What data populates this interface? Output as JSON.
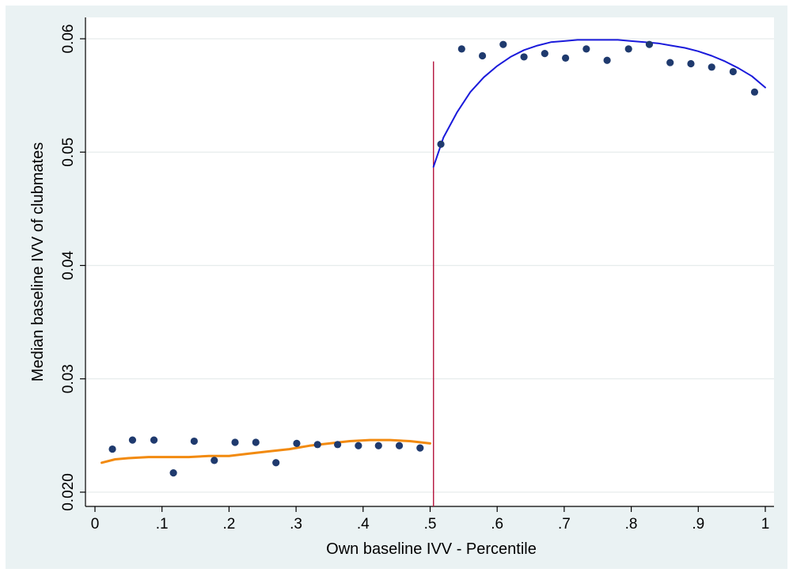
{
  "chart_data": {
    "type": "scatter",
    "title": "",
    "xlabel": "Own baseline IVV - Percentile",
    "ylabel": "Median baseline IVV of clubmates",
    "xlim": [
      0,
      1
    ],
    "ylim": [
      0.0195,
      0.0605
    ],
    "x_ticks": [
      {
        "value": 0,
        "label": "0"
      },
      {
        "value": 0.1,
        "label": ".1"
      },
      {
        "value": 0.2,
        "label": ".2"
      },
      {
        "value": 0.3,
        "label": ".3"
      },
      {
        "value": 0.4,
        "label": ".4"
      },
      {
        "value": 0.5,
        "label": ".5"
      },
      {
        "value": 0.6,
        "label": ".6"
      },
      {
        "value": 0.7,
        "label": ".7"
      },
      {
        "value": 0.8,
        "label": ".8"
      },
      {
        "value": 0.9,
        "label": ".9"
      },
      {
        "value": 1,
        "label": "1"
      }
    ],
    "y_ticks": [
      {
        "value": 0.02,
        "label": "0.020"
      },
      {
        "value": 0.03,
        "label": "0.03"
      },
      {
        "value": 0.04,
        "label": "0.04"
      },
      {
        "value": 0.05,
        "label": "0.05"
      },
      {
        "value": 0.06,
        "label": "0.06"
      }
    ],
    "grid": "horizontal",
    "cutoff": {
      "x": 0.505,
      "y_range": [
        0.0195,
        0.058
      ],
      "color": "#b5123c"
    },
    "scatter_points": {
      "color": "#1f3a6e",
      "x": [
        0.026,
        0.056,
        0.088,
        0.117,
        0.148,
        0.178,
        0.209,
        0.24,
        0.27,
        0.301,
        0.332,
        0.362,
        0.393,
        0.423,
        0.454,
        0.485,
        0.516,
        0.547,
        0.578,
        0.609,
        0.64,
        0.671,
        0.702,
        0.733,
        0.764,
        0.796,
        0.827,
        0.858,
        0.889,
        0.92,
        0.952,
        0.984
      ],
      "y": [
        0.0238,
        0.0246,
        0.0246,
        0.0217,
        0.0245,
        0.0228,
        0.0244,
        0.0244,
        0.0226,
        0.0243,
        0.0242,
        0.0242,
        0.0241,
        0.0241,
        0.0241,
        0.0239,
        0.0507,
        0.0591,
        0.0585,
        0.0595,
        0.0584,
        0.0587,
        0.0583,
        0.0591,
        0.0581,
        0.0591,
        0.0595,
        0.0579,
        0.0578,
        0.0575,
        0.0571,
        0.0553
      ]
    },
    "fits": [
      {
        "side": "left",
        "color": "#f28a0f",
        "x": [
          0.01,
          0.03,
          0.05,
          0.08,
          0.11,
          0.14,
          0.17,
          0.2,
          0.23,
          0.26,
          0.29,
          0.32,
          0.35,
          0.38,
          0.41,
          0.44,
          0.47,
          0.5
        ],
        "y": [
          0.0226,
          0.0229,
          0.023,
          0.0231,
          0.0231,
          0.0231,
          0.0232,
          0.0232,
          0.0234,
          0.0236,
          0.0238,
          0.0241,
          0.0243,
          0.0245,
          0.0246,
          0.0246,
          0.0245,
          0.0243
        ]
      },
      {
        "side": "right",
        "color": "#1a1adb",
        "x": [
          0.505,
          0.52,
          0.54,
          0.56,
          0.58,
          0.6,
          0.62,
          0.64,
          0.66,
          0.68,
          0.7,
          0.72,
          0.74,
          0.76,
          0.78,
          0.8,
          0.82,
          0.84,
          0.86,
          0.88,
          0.9,
          0.92,
          0.94,
          0.96,
          0.98,
          1.0
        ],
        "y": [
          0.0487,
          0.0513,
          0.0535,
          0.0553,
          0.0566,
          0.0576,
          0.0584,
          0.059,
          0.0594,
          0.0597,
          0.0598,
          0.0599,
          0.0599,
          0.0599,
          0.0599,
          0.0598,
          0.0597,
          0.0596,
          0.0594,
          0.0592,
          0.0589,
          0.0585,
          0.058,
          0.0574,
          0.0567,
          0.0557
        ]
      }
    ]
  }
}
